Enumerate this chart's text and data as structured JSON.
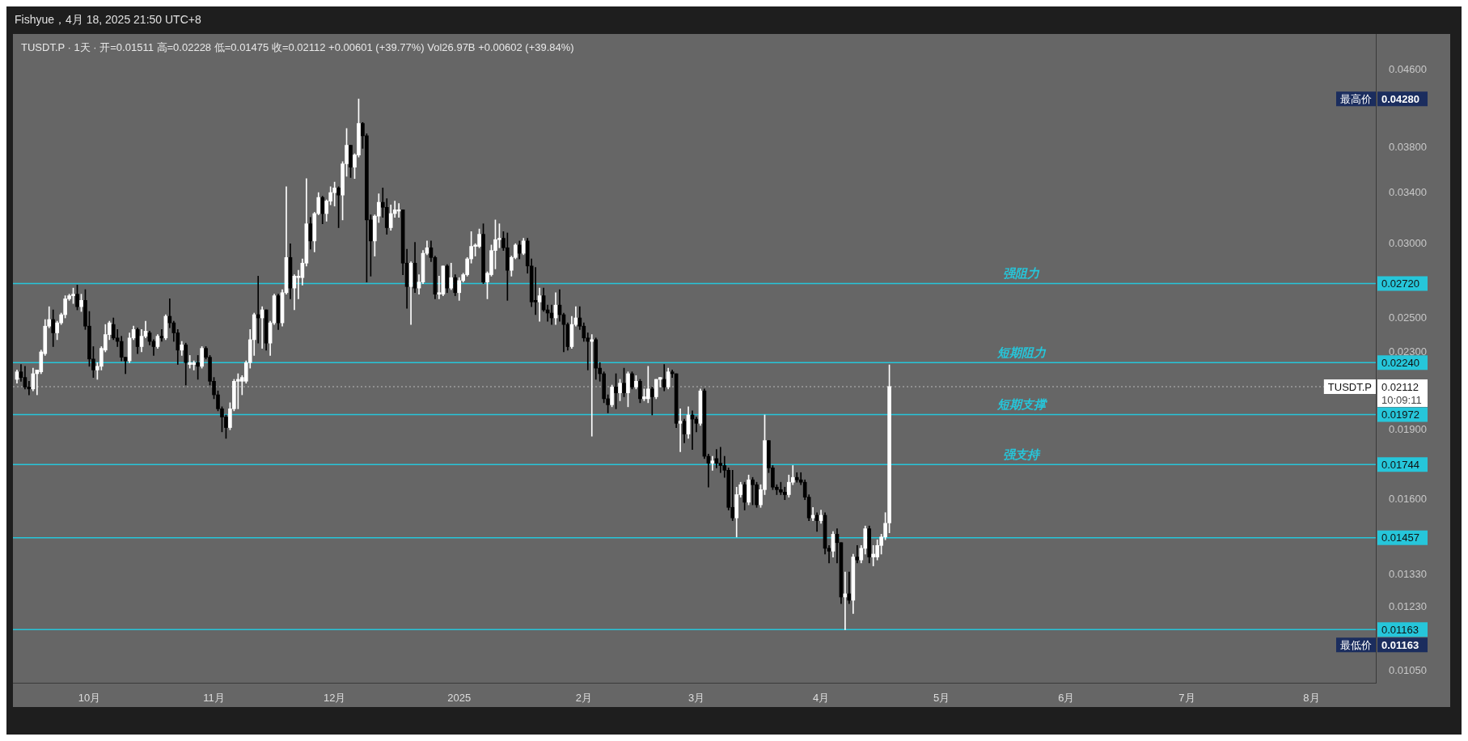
{
  "chart_data": {
    "type": "candlestick",
    "title": "Fishyue，4月 18, 2025 21:50 UTC+8",
    "subtitle": "TUSDT.P · 1天 · 开=0.01511 高=0.02228 低=0.01475 收=0.02112 +0.00601 (+39.77%) Vol26.97B +0.00602 (+39.84%)",
    "x": [
      "2024-09-13",
      "2024-09-14",
      "2024-09-15",
      "2024-09-16",
      "2024-09-17",
      "2024-09-18",
      "2024-09-19",
      "2024-09-20",
      "2024-09-21",
      "2024-09-22",
      "2024-09-23",
      "2024-09-24",
      "2024-09-25",
      "2024-09-26",
      "2024-09-27",
      "2024-09-28",
      "2024-09-29",
      "2024-09-30",
      "2024-10-01",
      "2024-10-02",
      "2024-10-03",
      "2024-10-04",
      "2024-10-05",
      "2024-10-06",
      "2024-10-07",
      "2024-10-08",
      "2024-10-09",
      "2024-10-10",
      "2024-10-11",
      "2024-10-12",
      "2024-10-13",
      "2024-10-14",
      "2024-10-15",
      "2024-10-16",
      "2024-10-17",
      "2024-10-18",
      "2024-10-19",
      "2024-10-20",
      "2024-10-21",
      "2024-10-22",
      "2024-10-23",
      "2024-10-24",
      "2024-10-25",
      "2024-10-26",
      "2024-10-27",
      "2024-10-28",
      "2024-10-29",
      "2024-10-30",
      "2024-10-31",
      "2024-11-01",
      "2024-11-02",
      "2024-11-03",
      "2024-11-04",
      "2024-11-05",
      "2024-11-06",
      "2024-11-07",
      "2024-11-08",
      "2024-11-09",
      "2024-11-10",
      "2024-11-11",
      "2024-11-12",
      "2024-11-13",
      "2024-11-14",
      "2024-11-15",
      "2024-11-16",
      "2024-11-17",
      "2024-11-18",
      "2024-11-19",
      "2024-11-20",
      "2024-11-21",
      "2024-11-22",
      "2024-11-23",
      "2024-11-24",
      "2024-11-25",
      "2024-11-26",
      "2024-11-27",
      "2024-11-28",
      "2024-11-29",
      "2024-11-30",
      "2024-12-01",
      "2024-12-02",
      "2024-12-03",
      "2024-12-04",
      "2024-12-05",
      "2024-12-06",
      "2024-12-07",
      "2024-12-08",
      "2024-12-09",
      "2024-12-10",
      "2024-12-11",
      "2024-12-12",
      "2024-12-13",
      "2024-12-14",
      "2024-12-15",
      "2024-12-16",
      "2024-12-17",
      "2024-12-18",
      "2024-12-19",
      "2024-12-20",
      "2024-12-21",
      "2024-12-22",
      "2024-12-23",
      "2024-12-24",
      "2024-12-25",
      "2024-12-26",
      "2024-12-27",
      "2024-12-28",
      "2024-12-29",
      "2024-12-30",
      "2024-12-31",
      "2025-01-01",
      "2025-01-02",
      "2025-01-03",
      "2025-01-04",
      "2025-01-05",
      "2025-01-06",
      "2025-01-07",
      "2025-01-08",
      "2025-01-09",
      "2025-01-10",
      "2025-01-11",
      "2025-01-12",
      "2025-01-13",
      "2025-01-14",
      "2025-01-15",
      "2025-01-16",
      "2025-01-17",
      "2025-01-18",
      "2025-01-19",
      "2025-01-20",
      "2025-01-21",
      "2025-01-22",
      "2025-01-23",
      "2025-01-24",
      "2025-01-25",
      "2025-01-26",
      "2025-01-27",
      "2025-01-28",
      "2025-01-29",
      "2025-01-30",
      "2025-01-31",
      "2025-02-01",
      "2025-02-02",
      "2025-02-03",
      "2025-02-04",
      "2025-02-05",
      "2025-02-06",
      "2025-02-07",
      "2025-02-08",
      "2025-02-09",
      "2025-02-10",
      "2025-02-11",
      "2025-02-12",
      "2025-02-13",
      "2025-02-14",
      "2025-02-15",
      "2025-02-16",
      "2025-02-17",
      "2025-02-18",
      "2025-02-19",
      "2025-02-20",
      "2025-02-21",
      "2025-02-22",
      "2025-02-23",
      "2025-02-24",
      "2025-02-25",
      "2025-02-26",
      "2025-02-27",
      "2025-02-28",
      "2025-03-01",
      "2025-03-02",
      "2025-03-03",
      "2025-03-04",
      "2025-03-05",
      "2025-03-06",
      "2025-03-07",
      "2025-03-08",
      "2025-03-09",
      "2025-03-10",
      "2025-03-11",
      "2025-03-12",
      "2025-03-13",
      "2025-03-14",
      "2025-03-15",
      "2025-03-16",
      "2025-03-17",
      "2025-03-18",
      "2025-03-19",
      "2025-03-20",
      "2025-03-21",
      "2025-03-22",
      "2025-03-23",
      "2025-03-24",
      "2025-03-25",
      "2025-03-26",
      "2025-03-27",
      "2025-03-28",
      "2025-03-29",
      "2025-03-30",
      "2025-03-31",
      "2025-04-01",
      "2025-04-02",
      "2025-04-03",
      "2025-04-04",
      "2025-04-05",
      "2025-04-06",
      "2025-04-07",
      "2025-04-08",
      "2025-04-09",
      "2025-04-10",
      "2025-04-11",
      "2025-04-12",
      "2025-04-13",
      "2025-04-14",
      "2025-04-15",
      "2025-04-16",
      "2025-04-17",
      "2025-04-18"
    ],
    "ohlc": [
      [
        0.0215,
        0.022,
        0.0213,
        0.0219
      ],
      [
        0.0219,
        0.0223,
        0.0214,
        0.0216
      ],
      [
        0.0216,
        0.0222,
        0.021,
        0.0211
      ],
      [
        0.0211,
        0.0214,
        0.0207,
        0.021
      ],
      [
        0.021,
        0.0221,
        0.0209,
        0.0218
      ],
      [
        0.0218,
        0.022,
        0.0207,
        0.022
      ],
      [
        0.0219,
        0.0231,
        0.0218,
        0.023
      ],
      [
        0.0229,
        0.0249,
        0.0228,
        0.0245
      ],
      [
        0.0245,
        0.0257,
        0.0244,
        0.0249
      ],
      [
        0.0249,
        0.0255,
        0.0233,
        0.0241
      ],
      [
        0.0241,
        0.0248,
        0.0237,
        0.0247
      ],
      [
        0.0247,
        0.0253,
        0.0246,
        0.0252
      ],
      [
        0.0252,
        0.0264,
        0.025,
        0.0262
      ],
      [
        0.0262,
        0.0265,
        0.0261,
        0.0264
      ],
      [
        0.0264,
        0.0269,
        0.0259,
        0.0265
      ],
      [
        0.0265,
        0.0271,
        0.0255,
        0.0257
      ],
      [
        0.0257,
        0.0265,
        0.0254,
        0.0261
      ],
      [
        0.0261,
        0.0268,
        0.0243,
        0.0245
      ],
      [
        0.0245,
        0.0254,
        0.0222,
        0.0226
      ],
      [
        0.0226,
        0.0233,
        0.0216,
        0.022
      ],
      [
        0.022,
        0.0224,
        0.0215,
        0.0222
      ],
      [
        0.0222,
        0.0233,
        0.022,
        0.0232
      ],
      [
        0.0231,
        0.0246,
        0.023,
        0.024
      ],
      [
        0.024,
        0.0248,
        0.0237,
        0.0247
      ],
      [
        0.0246,
        0.025,
        0.0237,
        0.0238
      ],
      [
        0.0238,
        0.0243,
        0.0233,
        0.0236
      ],
      [
        0.0236,
        0.0239,
        0.0225,
        0.0227
      ],
      [
        0.0227,
        0.0227,
        0.0218,
        0.0225
      ],
      [
        0.0225,
        0.0241,
        0.0224,
        0.0238
      ],
      [
        0.0238,
        0.0245,
        0.0237,
        0.0243
      ],
      [
        0.0243,
        0.0244,
        0.0229,
        0.0233
      ],
      [
        0.0233,
        0.0243,
        0.023,
        0.0239
      ],
      [
        0.0239,
        0.0248,
        0.0238,
        0.0242
      ],
      [
        0.0241,
        0.0242,
        0.0234,
        0.0236
      ],
      [
        0.0236,
        0.0237,
        0.0228,
        0.0233
      ],
      [
        0.0233,
        0.024,
        0.0232,
        0.0239
      ],
      [
        0.0239,
        0.0243,
        0.0236,
        0.0238
      ],
      [
        0.0238,
        0.0252,
        0.0237,
        0.0251
      ],
      [
        0.0251,
        0.0262,
        0.0244,
        0.0247
      ],
      [
        0.0247,
        0.0248,
        0.0236,
        0.0241
      ],
      [
        0.0241,
        0.0243,
        0.0223,
        0.0231
      ],
      [
        0.0231,
        0.0236,
        0.0228,
        0.0234
      ],
      [
        0.0234,
        0.0235,
        0.0212,
        0.0224
      ],
      [
        0.0223,
        0.0228,
        0.0221,
        0.0224
      ],
      [
        0.0223,
        0.0225,
        0.022,
        0.0224
      ],
      [
        0.0224,
        0.0228,
        0.0215,
        0.0222
      ],
      [
        0.0222,
        0.0233,
        0.0221,
        0.0232
      ],
      [
        0.0232,
        0.0233,
        0.0226,
        0.0227
      ],
      [
        0.0227,
        0.0228,
        0.0212,
        0.0214
      ],
      [
        0.0214,
        0.0216,
        0.0205,
        0.0207
      ],
      [
        0.0207,
        0.0209,
        0.0199,
        0.02
      ],
      [
        0.02,
        0.0201,
        0.0189,
        0.0196
      ],
      [
        0.0196,
        0.0197,
        0.0186,
        0.0191
      ],
      [
        0.0191,
        0.0203,
        0.019,
        0.02
      ],
      [
        0.02,
        0.0215,
        0.0199,
        0.0214
      ],
      [
        0.0214,
        0.0218,
        0.02,
        0.0215
      ],
      [
        0.0214,
        0.0217,
        0.0207,
        0.0216
      ],
      [
        0.0214,
        0.0225,
        0.0213,
        0.0224
      ],
      [
        0.0224,
        0.0243,
        0.0221,
        0.0237
      ],
      [
        0.0237,
        0.0253,
        0.0228,
        0.0252
      ],
      [
        0.0252,
        0.0277,
        0.0235,
        0.025
      ],
      [
        0.025,
        0.0257,
        0.0232,
        0.0255
      ],
      [
        0.0255,
        0.0255,
        0.0231,
        0.0235
      ],
      [
        0.0235,
        0.0248,
        0.0228,
        0.0247
      ],
      [
        0.0247,
        0.0265,
        0.0246,
        0.0264
      ],
      [
        0.0264,
        0.0265,
        0.0243,
        0.0247
      ],
      [
        0.0247,
        0.0268,
        0.0245,
        0.0266
      ],
      [
        0.0266,
        0.0345,
        0.0265,
        0.029
      ],
      [
        0.029,
        0.03,
        0.0262,
        0.0269
      ],
      [
        0.0269,
        0.0278,
        0.0255,
        0.0277
      ],
      [
        0.0276,
        0.0281,
        0.0262,
        0.0277
      ],
      [
        0.0276,
        0.0289,
        0.0271,
        0.0286
      ],
      [
        0.0286,
        0.0352,
        0.0284,
        0.0315
      ],
      [
        0.0315,
        0.032,
        0.0296,
        0.0302
      ],
      [
        0.0302,
        0.0324,
        0.0294,
        0.0323
      ],
      [
        0.0323,
        0.034,
        0.0322,
        0.0336
      ],
      [
        0.0336,
        0.0337,
        0.0315,
        0.0323
      ],
      [
        0.0323,
        0.0334,
        0.0317,
        0.0333
      ],
      [
        0.0333,
        0.0345,
        0.033,
        0.034
      ],
      [
        0.034,
        0.0349,
        0.0329,
        0.0344
      ],
      [
        0.0344,
        0.0345,
        0.0312,
        0.0338
      ],
      [
        0.0338,
        0.0367,
        0.0318,
        0.0365
      ],
      [
        0.0365,
        0.0398,
        0.0354,
        0.0382
      ],
      [
        0.0382,
        0.0382,
        0.0353,
        0.0362
      ],
      [
        0.0362,
        0.0374,
        0.0352,
        0.0373
      ],
      [
        0.0373,
        0.0428,
        0.0371,
        0.0403
      ],
      [
        0.0403,
        0.0404,
        0.0379,
        0.0391
      ],
      [
        0.0391,
        0.0393,
        0.0273,
        0.0318
      ],
      [
        0.0318,
        0.0322,
        0.0277,
        0.0302
      ],
      [
        0.0302,
        0.0322,
        0.0291,
        0.0321
      ],
      [
        0.0321,
        0.0339,
        0.0316,
        0.0332
      ],
      [
        0.0332,
        0.0344,
        0.032,
        0.0328
      ],
      [
        0.0328,
        0.0335,
        0.0307,
        0.0312
      ],
      [
        0.0312,
        0.033,
        0.031,
        0.0323
      ],
      [
        0.0323,
        0.0333,
        0.032,
        0.0326
      ],
      [
        0.0325,
        0.0331,
        0.032,
        0.0326
      ],
      [
        0.0326,
        0.0326,
        0.0278,
        0.0286
      ],
      [
        0.0286,
        0.0296,
        0.0256,
        0.027
      ],
      [
        0.027,
        0.0287,
        0.0246,
        0.0286
      ],
      [
        0.0286,
        0.0301,
        0.0266,
        0.0269
      ],
      [
        0.0269,
        0.0278,
        0.0265,
        0.0273
      ],
      [
        0.0273,
        0.0295,
        0.0272,
        0.0293
      ],
      [
        0.0293,
        0.0302,
        0.0292,
        0.0297
      ],
      [
        0.0297,
        0.0302,
        0.0287,
        0.029
      ],
      [
        0.029,
        0.0291,
        0.0262,
        0.0265
      ],
      [
        0.0265,
        0.0277,
        0.0262,
        0.0266
      ],
      [
        0.0265,
        0.0284,
        0.0264,
        0.0284
      ],
      [
        0.0284,
        0.0285,
        0.0266,
        0.0269
      ],
      [
        0.0269,
        0.0286,
        0.0268,
        0.0276
      ],
      [
        0.0276,
        0.0278,
        0.0264,
        0.0266
      ],
      [
        0.0266,
        0.0276,
        0.0261,
        0.0274
      ],
      [
        0.0274,
        0.0279,
        0.0273,
        0.0278
      ],
      [
        0.0278,
        0.029,
        0.0277,
        0.0289
      ],
      [
        0.0289,
        0.0309,
        0.0286,
        0.0298
      ],
      [
        0.0298,
        0.03,
        0.0291,
        0.0299
      ],
      [
        0.0298,
        0.0311,
        0.0297,
        0.0307
      ],
      [
        0.0307,
        0.0315,
        0.0272,
        0.0273
      ],
      [
        0.0273,
        0.028,
        0.0262,
        0.0279
      ],
      [
        0.0278,
        0.0299,
        0.0277,
        0.0295
      ],
      [
        0.0295,
        0.0318,
        0.0282,
        0.0303
      ],
      [
        0.0303,
        0.0315,
        0.0297,
        0.0304
      ],
      [
        0.0304,
        0.0309,
        0.0295,
        0.0297
      ],
      [
        0.0297,
        0.0308,
        0.0261,
        0.0281
      ],
      [
        0.0281,
        0.0291,
        0.0277,
        0.029
      ],
      [
        0.029,
        0.03,
        0.0289,
        0.0299
      ],
      [
        0.0299,
        0.0302,
        0.0289,
        0.0293
      ],
      [
        0.0293,
        0.0304,
        0.0292,
        0.0302
      ],
      [
        0.0302,
        0.0304,
        0.0279,
        0.0284
      ],
      [
        0.0284,
        0.0289,
        0.0257,
        0.026
      ],
      [
        0.0261,
        0.0283,
        0.0252,
        0.026
      ],
      [
        0.026,
        0.0269,
        0.0248,
        0.0264
      ],
      [
        0.0264,
        0.0269,
        0.0254,
        0.0255
      ],
      [
        0.0255,
        0.0258,
        0.0248,
        0.0253
      ],
      [
        0.0253,
        0.0258,
        0.0246,
        0.025
      ],
      [
        0.025,
        0.0266,
        0.0246,
        0.0258
      ],
      [
        0.0258,
        0.0268,
        0.0248,
        0.0252
      ],
      [
        0.0252,
        0.0253,
        0.023,
        0.0246
      ],
      [
        0.0246,
        0.0247,
        0.0231,
        0.0233
      ],
      [
        0.0233,
        0.0251,
        0.0232,
        0.0246
      ],
      [
        0.0246,
        0.0257,
        0.0245,
        0.025
      ],
      [
        0.025,
        0.0257,
        0.0243,
        0.0245
      ],
      [
        0.0245,
        0.0247,
        0.0236,
        0.0238
      ],
      [
        0.0238,
        0.0241,
        0.022,
        0.0236
      ],
      [
        0.0236,
        0.024,
        0.0187,
        0.0237
      ],
      [
        0.0237,
        0.0238,
        0.0215,
        0.0221
      ],
      [
        0.0221,
        0.0224,
        0.0214,
        0.0218
      ],
      [
        0.0218,
        0.0219,
        0.0203,
        0.0205
      ],
      [
        0.0205,
        0.0207,
        0.0198,
        0.0202
      ],
      [
        0.0202,
        0.0212,
        0.0201,
        0.0211
      ],
      [
        0.0211,
        0.0218,
        0.02,
        0.0208
      ],
      [
        0.0208,
        0.0215,
        0.0204,
        0.0213
      ],
      [
        0.0213,
        0.0221,
        0.0206,
        0.0208
      ],
      [
        0.0208,
        0.0219,
        0.0201,
        0.0218
      ],
      [
        0.0218,
        0.0219,
        0.021,
        0.0211
      ],
      [
        0.0211,
        0.0217,
        0.021,
        0.0214
      ],
      [
        0.0214,
        0.0215,
        0.0203,
        0.0205
      ],
      [
        0.0205,
        0.021,
        0.0204,
        0.0206
      ],
      [
        0.0205,
        0.0222,
        0.0203,
        0.021
      ],
      [
        0.021,
        0.0211,
        0.0197,
        0.0206
      ],
      [
        0.0206,
        0.0215,
        0.0205,
        0.0215
      ],
      [
        0.0215,
        0.0216,
        0.0211,
        0.0216
      ],
      [
        0.0215,
        0.0223,
        0.0209,
        0.0211
      ],
      [
        0.0211,
        0.0221,
        0.021,
        0.0219
      ],
      [
        0.0219,
        0.022,
        0.0216,
        0.0218
      ],
      [
        0.0218,
        0.0218,
        0.0191,
        0.0193
      ],
      [
        0.0193,
        0.02,
        0.018,
        0.0194
      ],
      [
        0.0194,
        0.0195,
        0.0184,
        0.0188
      ],
      [
        0.0188,
        0.0201,
        0.0186,
        0.0197
      ],
      [
        0.0197,
        0.0199,
        0.0181,
        0.0195
      ],
      [
        0.0195,
        0.0196,
        0.0189,
        0.0193
      ],
      [
        0.0193,
        0.021,
        0.0192,
        0.0209
      ],
      [
        0.0209,
        0.021,
        0.0177,
        0.0178
      ],
      [
        0.0178,
        0.0179,
        0.0165,
        0.0175
      ],
      [
        0.0175,
        0.0178,
        0.0172,
        0.0176
      ],
      [
        0.0177,
        0.0181,
        0.0173,
        0.0175
      ],
      [
        0.0175,
        0.0182,
        0.0171,
        0.0174
      ],
      [
        0.0174,
        0.0178,
        0.0169,
        0.0172
      ],
      [
        0.0172,
        0.0173,
        0.0156,
        0.0157
      ],
      [
        0.0157,
        0.0172,
        0.0152,
        0.0153
      ],
      [
        0.0153,
        0.0165,
        0.0146,
        0.0162
      ],
      [
        0.0162,
        0.0167,
        0.0161,
        0.0166
      ],
      [
        0.0166,
        0.0167,
        0.0156,
        0.0159
      ],
      [
        0.0159,
        0.017,
        0.0158,
        0.0168
      ],
      [
        0.0168,
        0.0169,
        0.0158,
        0.0166
      ],
      [
        0.0166,
        0.0167,
        0.0157,
        0.0158
      ],
      [
        0.0158,
        0.0166,
        0.0157,
        0.0164
      ],
      [
        0.0164,
        0.0197,
        0.0162,
        0.0185
      ],
      [
        0.0185,
        0.0185,
        0.0171,
        0.0173
      ],
      [
        0.0173,
        0.0174,
        0.0164,
        0.0165
      ],
      [
        0.0165,
        0.0166,
        0.0162,
        0.0164
      ],
      [
        0.0164,
        0.0167,
        0.0162,
        0.0163
      ],
      [
        0.0163,
        0.0165,
        0.016,
        0.0162
      ],
      [
        0.0162,
        0.017,
        0.0161,
        0.0167
      ],
      [
        0.0167,
        0.0174,
        0.0166,
        0.0169
      ],
      [
        0.0169,
        0.0171,
        0.0167,
        0.0168
      ],
      [
        0.0168,
        0.0171,
        0.0166,
        0.0167
      ],
      [
        0.0167,
        0.0168,
        0.016,
        0.0161
      ],
      [
        0.0161,
        0.0162,
        0.0152,
        0.0153
      ],
      [
        0.0153,
        0.0157,
        0.0152,
        0.0154
      ],
      [
        0.0154,
        0.0155,
        0.0148,
        0.0152
      ],
      [
        0.0152,
        0.0156,
        0.0151,
        0.0154
      ],
      [
        0.0154,
        0.0155,
        0.014,
        0.0142
      ],
      [
        0.0142,
        0.0143,
        0.0137,
        0.0141
      ],
      [
        0.0141,
        0.0148,
        0.0139,
        0.0147
      ],
      [
        0.0147,
        0.0149,
        0.0137,
        0.0144
      ],
      [
        0.0144,
        0.0144,
        0.0124,
        0.0126
      ],
      [
        0.0126,
        0.0134,
        0.01163,
        0.0127
      ],
      [
        0.0127,
        0.0134,
        0.0124,
        0.0125
      ],
      [
        0.0125,
        0.014,
        0.0121,
        0.0139
      ],
      [
        0.0139,
        0.0143,
        0.0137,
        0.0138
      ],
      [
        0.0138,
        0.0143,
        0.0137,
        0.0142
      ],
      [
        0.0142,
        0.015,
        0.014,
        0.0149
      ],
      [
        0.0149,
        0.015,
        0.0137,
        0.0139
      ],
      [
        0.0139,
        0.0143,
        0.0136,
        0.014
      ],
      [
        0.0139,
        0.0145,
        0.0138,
        0.0143
      ],
      [
        0.0143,
        0.0147,
        0.014,
        0.0146
      ],
      [
        0.0146,
        0.0155,
        0.0145,
        0.0151
      ],
      [
        0.01511,
        0.02228,
        0.01475,
        0.02112
      ]
    ],
    "colors": [
      "#ffffff",
      "#000000",
      "#000000",
      "#000000",
      "#ffffff",
      "#ffffff",
      "#ffffff",
      "#ffffff",
      "#ffffff",
      "#000000",
      "#ffffff",
      "#ffffff",
      "#ffffff",
      "#ffffff",
      "#ffffff",
      "#000000",
      "#ffffff",
      "#000000",
      "#000000",
      "#000000",
      "#ffffff",
      "#ffffff",
      "#ffffff",
      "#ffffff",
      "#000000",
      "#000000",
      "#000000",
      "#000000",
      "#ffffff",
      "#ffffff",
      "#000000",
      "#ffffff",
      "#ffffff",
      "#000000",
      "#000000",
      "#ffffff",
      "#000000",
      "#ffffff",
      "#000000",
      "#000000",
      "#000000",
      "#ffffff",
      "#000000",
      "#ffffff",
      "#ffffff",
      "#000000",
      "#ffffff",
      "#000000",
      "#000000",
      "#000000",
      "#000000",
      "#000000",
      "#000000",
      "#ffffff",
      "#ffffff",
      "#ffffff",
      "#ffffff",
      "#ffffff",
      "#ffffff",
      "#ffffff",
      "#000000",
      "#ffffff",
      "#000000",
      "#ffffff",
      "#ffffff",
      "#000000",
      "#ffffff",
      "#ffffff",
      "#000000",
      "#ffffff",
      "#ffffff",
      "#ffffff",
      "#ffffff",
      "#000000",
      "#ffffff",
      "#ffffff",
      "#000000",
      "#ffffff",
      "#ffffff",
      "#ffffff",
      "#000000",
      "#ffffff",
      "#ffffff",
      "#000000",
      "#ffffff",
      "#ffffff",
      "#000000",
      "#000000",
      "#000000",
      "#ffffff",
      "#ffffff",
      "#000000",
      "#000000",
      "#ffffff",
      "#ffffff",
      "#ffffff",
      "#000000",
      "#000000",
      "#ffffff",
      "#000000",
      "#ffffff",
      "#ffffff",
      "#ffffff",
      "#000000",
      "#000000",
      "#ffffff",
      "#ffffff",
      "#000000",
      "#ffffff",
      "#000000",
      "#ffffff",
      "#ffffff",
      "#ffffff",
      "#ffffff",
      "#ffffff",
      "#ffffff",
      "#000000",
      "#ffffff",
      "#ffffff",
      "#ffffff",
      "#ffffff",
      "#000000",
      "#000000",
      "#ffffff",
      "#ffffff",
      "#000000",
      "#ffffff",
      "#000000",
      "#000000",
      "#000000",
      "#ffffff",
      "#000000",
      "#000000",
      "#000000",
      "#ffffff",
      "#000000",
      "#000000",
      "#000000",
      "#ffffff",
      "#ffffff",
      "#000000",
      "#000000",
      "#000000",
      "#ffffff",
      "#000000",
      "#000000",
      "#000000",
      "#000000",
      "#ffffff",
      "#000000",
      "#ffffff",
      "#000000",
      "#ffffff",
      "#000000",
      "#ffffff",
      "#000000",
      "#ffffff",
      "#ffffff",
      "#000000",
      "#ffffff",
      "#ffffff",
      "#000000",
      "#ffffff",
      "#000000",
      "#000000",
      "#ffffff",
      "#000000",
      "#ffffff",
      "#000000",
      "#000000",
      "#ffffff",
      "#000000",
      "#000000",
      "#ffffff",
      "#000000",
      "#000000",
      "#000000",
      "#000000",
      "#000000",
      "#ffffff",
      "#ffffff",
      "#000000",
      "#ffffff",
      "#000000",
      "#000000",
      "#ffffff",
      "#ffffff",
      "#000000",
      "#000000",
      "#000000",
      "#000000",
      "#000000",
      "#ffffff",
      "#ffffff",
      "#000000",
      "#000000",
      "#000000",
      "#000000",
      "#ffffff",
      "#000000",
      "#ffffff",
      "#000000",
      "#000000",
      "#ffffff",
      "#000000",
      "#000000",
      "#ffffff",
      "#000000",
      "#ffffff",
      "#000000",
      "#ffffff",
      "#ffffff",
      "#000000",
      "#ffffff",
      "#ffffff",
      "#ffffff",
      "#ffffff",
      "#ffffff"
    ],
    "xlim": [
      "2024-09-12",
      "2025-08-17"
    ],
    "xticks": [
      {
        "value": "2024-10-01",
        "label": "10月"
      },
      {
        "value": "2024-11-01",
        "label": "11月"
      },
      {
        "value": "2024-12-01",
        "label": "12月"
      },
      {
        "value": "2025-01-01",
        "label": "2025"
      },
      {
        "value": "2025-02-01",
        "label": "2月"
      },
      {
        "value": "2025-03-01",
        "label": "3月"
      },
      {
        "value": "2025-04-01",
        "label": "4月"
      },
      {
        "value": "2025-05-01",
        "label": "5月"
      },
      {
        "value": "2025-06-01",
        "label": "6月"
      },
      {
        "value": "2025-07-01",
        "label": "7月"
      },
      {
        "value": "2025-08-01",
        "label": "8月"
      }
    ],
    "log": true,
    "ylim": [
      0.0102,
      0.0502
    ],
    "yticks": [
      {
        "value": 0.0105,
        "label": "0.01050"
      },
      {
        "value": 0.0123,
        "label": "0.01230"
      },
      {
        "value": 0.0133,
        "label": "0.01330"
      },
      {
        "value": 0.016,
        "label": "0.01600"
      },
      {
        "value": 0.019,
        "label": "0.01900"
      },
      {
        "value": 0.023,
        "label": "0.02300"
      },
      {
        "value": 0.025,
        "label": "0.02500"
      },
      {
        "value": 0.03,
        "label": "0.03000"
      },
      {
        "value": 0.034,
        "label": "0.03400"
      },
      {
        "value": 0.038,
        "label": "0.03800"
      },
      {
        "value": 0.046,
        "label": "0.04600"
      }
    ],
    "ref_lines": [
      {
        "axis": "y",
        "value": 0.0272,
        "label": "强阻力",
        "color": "#26c6da"
      },
      {
        "axis": "y",
        "value": 0.0224,
        "label": "短期阻力",
        "color": "#26c6da"
      },
      {
        "axis": "y",
        "value": 0.01972,
        "label": "短期支撑",
        "color": "#26c6da"
      },
      {
        "axis": "y",
        "value": 0.01744,
        "label": "强支持",
        "color": "#26c6da"
      },
      {
        "axis": "y",
        "value": 0.01457,
        "color": "#26c6da"
      },
      {
        "axis": "y",
        "value": 0.01163,
        "color": "#26c6da"
      },
      {
        "axis": "y",
        "value": 0.02112,
        "color": "#9e9e9e",
        "line_style": "dotted"
      }
    ],
    "annotations": [
      "0.02720",
      "0.02240",
      "0.01972",
      "0.01744",
      "0.01457",
      "0.01163",
      "最高价",
      "0.04280",
      "最低价",
      "0.01163",
      "TUSDT.P",
      "0.02112",
      "10:09:11"
    ]
  }
}
